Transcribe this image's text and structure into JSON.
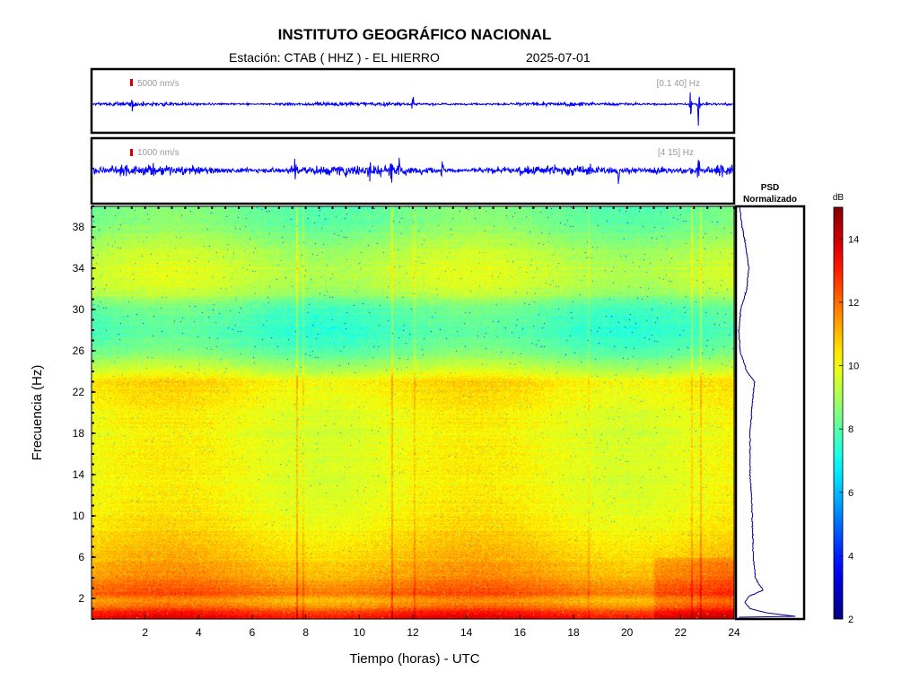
{
  "header": {
    "institution": "INSTITUTO GEOGRÁFICO NACIONAL",
    "station_label": "Estación:  CTAB ( HHZ ) - EL HIERRO",
    "date": "2025-07-01"
  },
  "colors": {
    "trace": "#0000ff",
    "scale_marker": "#cc0000",
    "annotation_text": "#999999",
    "psd_line": "#00008b"
  },
  "chart_data": [
    {
      "type": "line",
      "name": "trace-broadband",
      "scale_label": "5000 nm/s",
      "band_label": "[0.1 40] Hz",
      "x_range": [
        0,
        24
      ],
      "noise_level": 0.12,
      "events": [
        {
          "x": 1.5,
          "amp": 0.35
        },
        {
          "x": 12.0,
          "amp": 0.4
        },
        {
          "x": 22.4,
          "amp": 0.7
        },
        {
          "x": 22.7,
          "amp": 0.9
        }
      ]
    },
    {
      "type": "line",
      "name": "trace-filtered",
      "scale_label": "1000 nm/s",
      "band_label": "[4 15] Hz",
      "x_range": [
        0,
        24
      ],
      "noise_level": 0.3,
      "events": [
        {
          "x": 7.6,
          "amp": 0.75
        },
        {
          "x": 10.4,
          "amp": 0.7
        },
        {
          "x": 11.2,
          "amp": 0.85
        },
        {
          "x": 11.5,
          "amp": 0.6
        },
        {
          "x": 13.1,
          "amp": 0.55
        },
        {
          "x": 19.7,
          "amp": 0.55
        },
        {
          "x": 22.7,
          "amp": 0.9
        }
      ]
    },
    {
      "type": "heatmap",
      "name": "spectrogram",
      "xlabel": "Tiempo (horas) - UTC",
      "ylabel": "Frecuencia  (Hz)",
      "xlim": [
        0,
        24
      ],
      "ylim": [
        0,
        40
      ],
      "xticks": [
        2,
        4,
        6,
        8,
        10,
        12,
        14,
        16,
        18,
        20,
        22,
        24
      ],
      "yticks": [
        2,
        6,
        10,
        14,
        18,
        22,
        26,
        30,
        34,
        38
      ],
      "db_profile": [
        {
          "f": 0,
          "db": 13.5
        },
        {
          "f": 0.5,
          "db": 13.2
        },
        {
          "f": 1.0,
          "db": 12.2
        },
        {
          "f": 1.5,
          "db": 11.6
        },
        {
          "f": 2.0,
          "db": 11.3
        },
        {
          "f": 2.5,
          "db": 12.3
        },
        {
          "f": 3.0,
          "db": 12.0
        },
        {
          "f": 4.0,
          "db": 11.4
        },
        {
          "f": 5.0,
          "db": 11.2
        },
        {
          "f": 6.0,
          "db": 10.9
        },
        {
          "f": 8.0,
          "db": 10.5
        },
        {
          "f": 10.0,
          "db": 10.2
        },
        {
          "f": 12.0,
          "db": 10.0
        },
        {
          "f": 14.0,
          "db": 10.0
        },
        {
          "f": 16.0,
          "db": 10.0
        },
        {
          "f": 18.0,
          "db": 9.9
        },
        {
          "f": 20.0,
          "db": 10.0
        },
        {
          "f": 22.0,
          "db": 10.3
        },
        {
          "f": 23.0,
          "db": 10.5
        },
        {
          "f": 24.0,
          "db": 9.5
        },
        {
          "f": 26.0,
          "db": 8.2
        },
        {
          "f": 28.0,
          "db": 7.7
        },
        {
          "f": 30.0,
          "db": 8.0
        },
        {
          "f": 32.0,
          "db": 9.3
        },
        {
          "f": 34.0,
          "db": 9.5
        },
        {
          "f": 36.0,
          "db": 9.1
        },
        {
          "f": 38.0,
          "db": 8.5
        },
        {
          "f": 40.0,
          "db": 8.2
        }
      ],
      "vertical_streaks": [
        {
          "t": 7.65,
          "boost": 1.4
        },
        {
          "t": 7.9,
          "boost": 0.8
        },
        {
          "t": 11.2,
          "boost": 1.2
        },
        {
          "t": 12.05,
          "boost": 0.8
        },
        {
          "t": 18.55,
          "boost": 0.6
        },
        {
          "t": 22.4,
          "boost": 0.9
        },
        {
          "t": 22.75,
          "boost": 1.1
        }
      ]
    },
    {
      "type": "line",
      "name": "psd-normalized",
      "title": "PSD\nNormalizado",
      "ylim": [
        0,
        40
      ],
      "profile": [
        {
          "f": 0.2,
          "v": 0.95
        },
        {
          "f": 0.6,
          "v": 0.45
        },
        {
          "f": 1.0,
          "v": 0.2
        },
        {
          "f": 1.6,
          "v": 0.12
        },
        {
          "f": 2.2,
          "v": 0.18
        },
        {
          "f": 2.8,
          "v": 0.4
        },
        {
          "f": 3.2,
          "v": 0.35
        },
        {
          "f": 4.0,
          "v": 0.28
        },
        {
          "f": 6.0,
          "v": 0.25
        },
        {
          "f": 8.0,
          "v": 0.24
        },
        {
          "f": 10.0,
          "v": 0.23
        },
        {
          "f": 12.0,
          "v": 0.22
        },
        {
          "f": 14.0,
          "v": 0.2
        },
        {
          "f": 16.0,
          "v": 0.2
        },
        {
          "f": 18.0,
          "v": 0.2
        },
        {
          "f": 20.0,
          "v": 0.22
        },
        {
          "f": 22.0,
          "v": 0.25
        },
        {
          "f": 23.0,
          "v": 0.27
        },
        {
          "f": 24.0,
          "v": 0.15
        },
        {
          "f": 26.0,
          "v": 0.05
        },
        {
          "f": 28.0,
          "v": 0.03
        },
        {
          "f": 30.0,
          "v": 0.06
        },
        {
          "f": 32.0,
          "v": 0.15
        },
        {
          "f": 34.0,
          "v": 0.18
        },
        {
          "f": 36.0,
          "v": 0.14
        },
        {
          "f": 38.0,
          "v": 0.08
        },
        {
          "f": 40.0,
          "v": 0.04
        }
      ]
    },
    {
      "type": "colorbar",
      "name": "db-colorbar",
      "unit": "dB",
      "range": [
        2,
        15
      ],
      "ticks": [
        2,
        4,
        6,
        8,
        10,
        12,
        14
      ]
    }
  ]
}
